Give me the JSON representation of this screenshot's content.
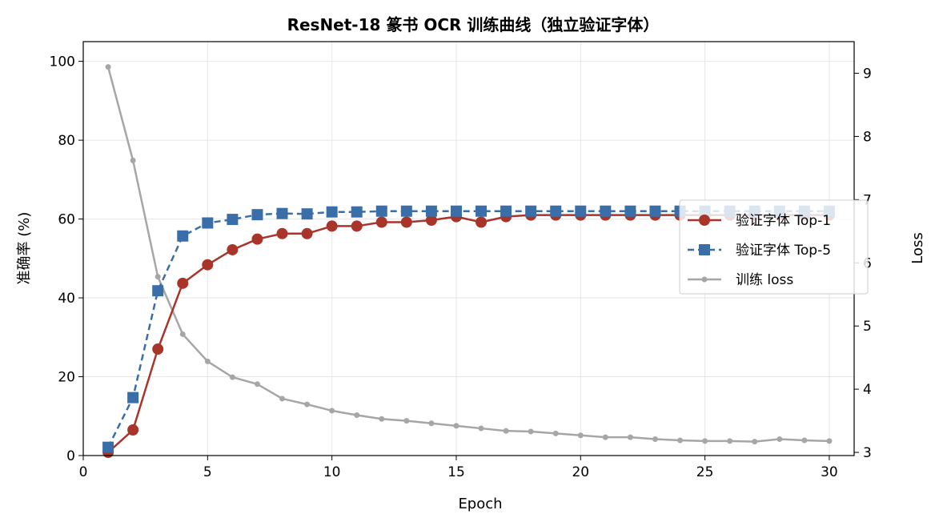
{
  "chart_data": {
    "type": "line",
    "title": "ResNet-18 篆书 OCR 训练曲线（独立验证字体）",
    "xlabel": "Epoch",
    "ylabel": "准确率 (%)",
    "y2label": "Loss",
    "xlim": [
      0,
      31
    ],
    "ylim": [
      0,
      105
    ],
    "y2lim": [
      2.95,
      9.5
    ],
    "xticks": [
      0,
      5,
      10,
      15,
      20,
      25,
      30
    ],
    "yticks": [
      0,
      20,
      40,
      60,
      80,
      100
    ],
    "y2ticks": [
      3,
      4,
      5,
      6,
      7,
      8,
      9
    ],
    "grid": true,
    "legend_position": "center-right",
    "x": [
      1,
      2,
      3,
      4,
      5,
      6,
      7,
      8,
      9,
      10,
      11,
      12,
      13,
      14,
      15,
      16,
      17,
      18,
      19,
      20,
      21,
      22,
      23,
      24,
      25,
      26,
      27,
      28,
      29,
      30
    ],
    "series": [
      {
        "name": "验证字体 Top-1",
        "axis": "left",
        "color": "#a8342a",
        "style": "solid",
        "marker": "circle",
        "values": [
          0.8,
          6.5,
          27.0,
          43.7,
          48.4,
          52.2,
          54.9,
          56.3,
          56.3,
          58.2,
          58.2,
          59.2,
          59.2,
          59.7,
          60.6,
          59.2,
          60.6,
          61.0,
          61.0,
          61.0,
          61.0,
          61.0,
          61.0,
          61.0,
          61.0,
          61.0,
          61.0,
          61.0,
          61.0,
          61.0
        ]
      },
      {
        "name": "验证字体 Top-5",
        "axis": "left",
        "color": "#3a6ea8",
        "style": "dashed",
        "marker": "square",
        "values": [
          2.1,
          14.7,
          41.8,
          55.7,
          59.0,
          59.9,
          61.1,
          61.4,
          61.3,
          61.8,
          61.8,
          62.0,
          62.0,
          62.0,
          62.0,
          62.0,
          62.0,
          62.0,
          62.0,
          62.0,
          62.0,
          62.0,
          62.0,
          62.0,
          62.0,
          62.0,
          62.0,
          62.0,
          62.0,
          62.0
        ]
      },
      {
        "name": "训练 loss",
        "axis": "right",
        "color": "#a6a6a6",
        "style": "solid",
        "marker": "dot",
        "values": [
          9.1,
          7.62,
          5.78,
          4.87,
          4.44,
          4.19,
          4.08,
          3.85,
          3.76,
          3.66,
          3.59,
          3.53,
          3.5,
          3.46,
          3.42,
          3.38,
          3.34,
          3.33,
          3.3,
          3.27,
          3.24,
          3.24,
          3.21,
          3.19,
          3.18,
          3.18,
          3.17,
          3.21,
          3.19,
          3.18
        ]
      }
    ]
  }
}
